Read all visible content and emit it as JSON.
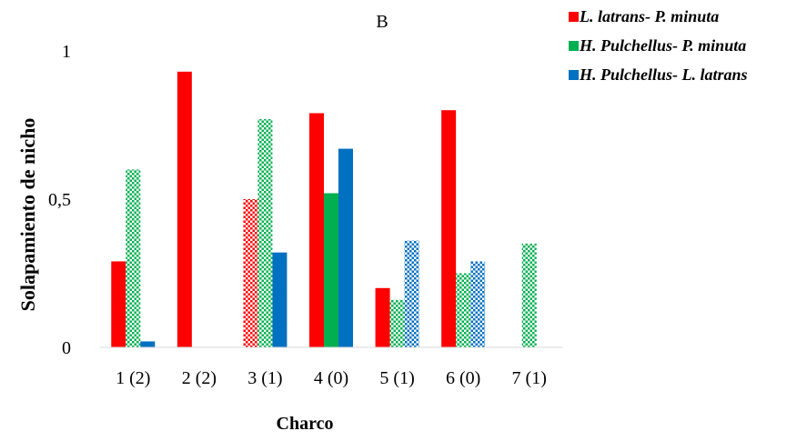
{
  "chart_data": {
    "type": "bar",
    "title": "B",
    "xlabel": "Charco",
    "ylabel": "Solapamiento de nicho",
    "ylim": [
      0,
      1
    ],
    "yticks": [
      {
        "value": 0,
        "label": "0"
      },
      {
        "value": 0.5,
        "label": "0,5"
      },
      {
        "value": 1,
        "label": "1"
      }
    ],
    "categories": [
      "1 (2)",
      "2 (2)",
      "3 (1)",
      "4 (0)",
      "5 (1)",
      "6 (0)",
      "7 (1)"
    ],
    "legend_position": "top-right",
    "series": [
      {
        "name": "L. latrans- P. minuta",
        "color": "#ff0000",
        "values": [
          0.29,
          0.93,
          0.5,
          0.79,
          0.2,
          0.8,
          null
        ],
        "patterned": [
          false,
          false,
          true,
          false,
          false,
          false,
          false
        ]
      },
      {
        "name": "H. Pulchellus- P. minuta",
        "color": "#00b050",
        "values": [
          0.6,
          null,
          0.77,
          0.52,
          0.16,
          0.25,
          0.35
        ],
        "patterned": [
          true,
          false,
          true,
          false,
          true,
          true,
          true
        ]
      },
      {
        "name": "H. Pulchellus- L. latrans",
        "color": "#0070c0",
        "values": [
          0.02,
          null,
          0.32,
          0.67,
          0.36,
          0.29,
          null
        ],
        "patterned": [
          false,
          false,
          false,
          false,
          true,
          true,
          false
        ]
      }
    ]
  }
}
